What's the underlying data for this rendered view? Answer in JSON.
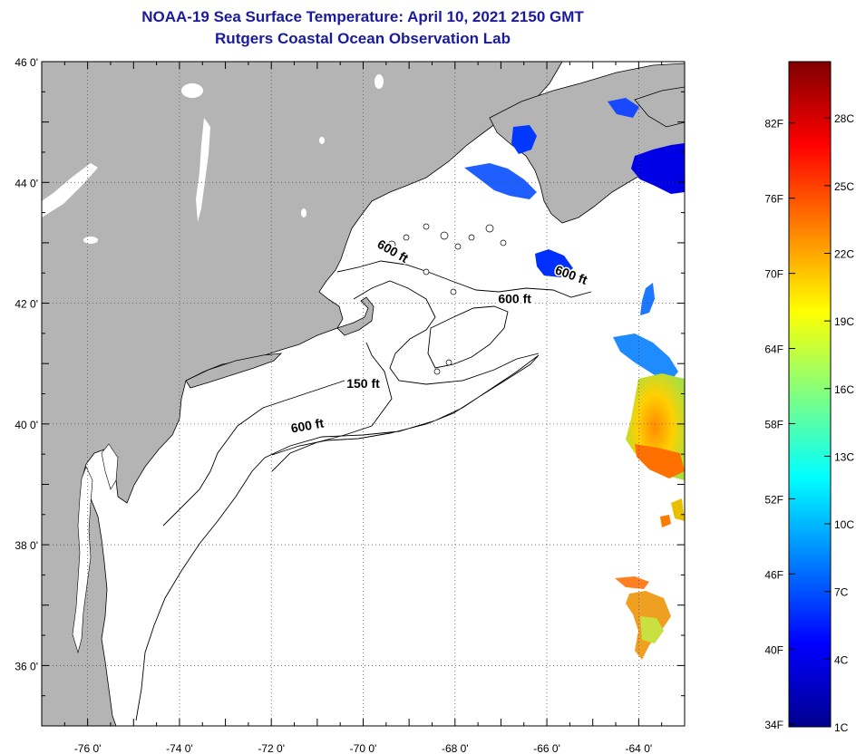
{
  "title": "NOAA-19 Sea Surface Temperature:  April 10, 2021 2150 GMT",
  "subtitle": "Rutgers Coastal Ocean Observation Lab",
  "map": {
    "lat_labels": [
      "46 0'",
      "44 0'",
      "42 0'",
      "40 0'",
      "38 0'",
      "36 0'"
    ],
    "lat_values": [
      46,
      44,
      42,
      40,
      38,
      36
    ],
    "lon_labels": [
      "-76 0'",
      "-74 0'",
      "-72 0'",
      "-70 0'",
      "-68 0'",
      "-66 0'",
      "-64 0'"
    ],
    "lon_values": [
      -76,
      -74,
      -72,
      -70,
      -68,
      -66,
      -64
    ],
    "lon_range": [
      -77,
      -63
    ],
    "lat_range": [
      35,
      46
    ],
    "land_color": "#b4b4b4",
    "ocean_color": "#ffffff",
    "contour_labels": [
      {
        "text": "600 ft",
        "lon": -69.4,
        "lat": 42.8,
        "rot": 30
      },
      {
        "text": "600 ft",
        "lon": -65.5,
        "lat": 42.4,
        "rot": 20
      },
      {
        "text": "600 ft",
        "lon": -66.7,
        "lat": 42.0,
        "rot": 0
      },
      {
        "text": "150 ft",
        "lon": -70.0,
        "lat": 40.6,
        "rot": 0
      },
      {
        "text": "600 ft",
        "lon": -71.2,
        "lat": 39.9,
        "rot": -10
      }
    ]
  },
  "colorbar": {
    "fahrenheit_labels": [
      "82F",
      "76F",
      "70F",
      "64F",
      "58F",
      "52F",
      "46F",
      "40F",
      "34F"
    ],
    "fahrenheit_values": [
      82,
      76,
      70,
      64,
      58,
      52,
      46,
      40,
      34
    ],
    "celsius_labels": [
      "28C",
      "25C",
      "22C",
      "19C",
      "16C",
      "13C",
      "10C",
      "7C",
      "4C",
      "1C"
    ],
    "celsius_values": [
      28,
      25,
      22,
      19,
      16,
      13,
      10,
      7,
      4,
      1
    ],
    "range_c": [
      1,
      30.5
    ],
    "colors": [
      "#00008f",
      "#0000ff",
      "#0080ff",
      "#00ffff",
      "#80ff80",
      "#ffff00",
      "#ff8000",
      "#ff0000",
      "#800000"
    ]
  }
}
